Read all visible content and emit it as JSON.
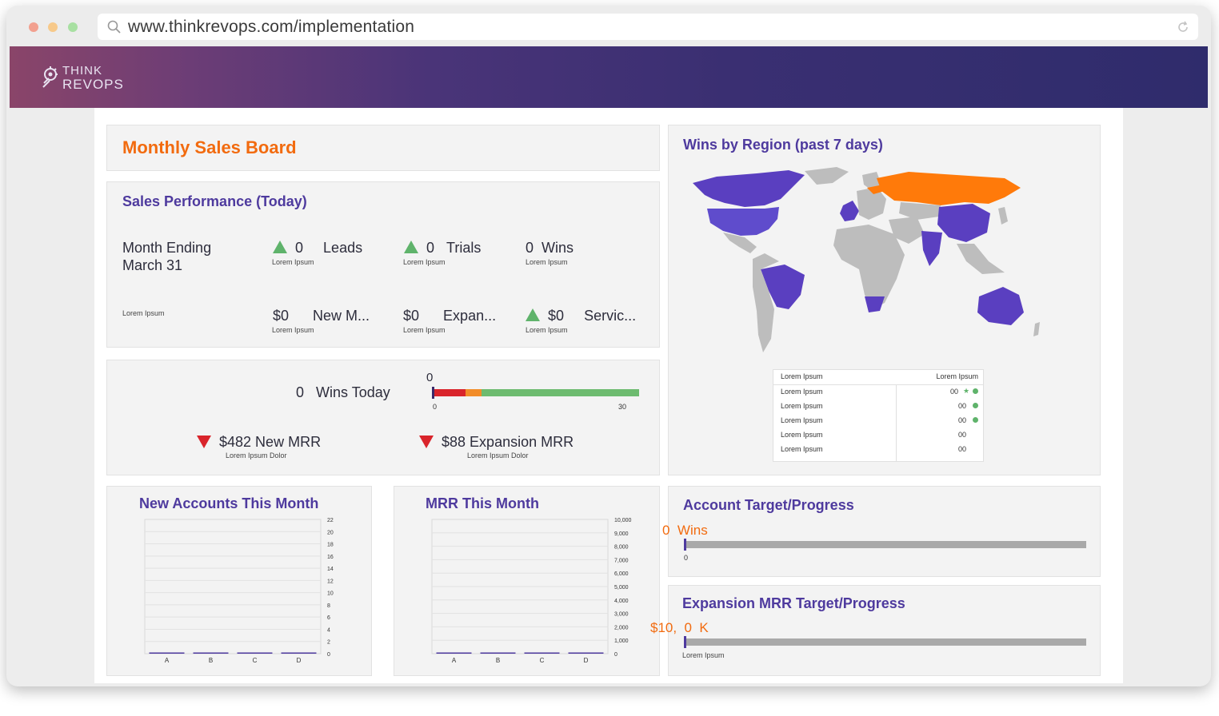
{
  "browser": {
    "url": "www.thinkrevops.com/implementation"
  },
  "logo": {
    "line1": "THINK",
    "line2": "REVOPS"
  },
  "board": {
    "title": "Monthly Sales Board"
  },
  "sales_performance": {
    "title": "Sales Performance (Today)",
    "month_ending": "Month Ending",
    "month_date": "March 31",
    "row1": [
      {
        "value": "0",
        "label": "Leads",
        "sub": "Lorem Ipsum",
        "trend": "up"
      },
      {
        "value": "0",
        "label": "Trials",
        "sub": "Lorem Ipsum",
        "trend": "up"
      },
      {
        "value": "0",
        "label": "Wins",
        "sub": "Lorem Ipsum",
        "trend": "none"
      }
    ],
    "row2_left": "Lorem Ipsum",
    "row2": [
      {
        "value": "$0",
        "label": "New M...",
        "sub": "Lorem Ipsum",
        "trend": "none"
      },
      {
        "value": "$0",
        "label": "Expan...",
        "sub": "Lorem Ipsum",
        "trend": "none"
      },
      {
        "value": "$0",
        "label": "Servic...",
        "sub": "Lorem Ipsum",
        "trend": "up"
      }
    ]
  },
  "wins_today": {
    "value": "0",
    "label": "Wins Today",
    "gauge_value": "0",
    "gauge_min": "0",
    "gauge_max": "30",
    "new_mrr": "$482 New MRR",
    "new_mrr_sub": "Lorem Ipsum Dolor",
    "exp_mrr": "$88 Expansion MRR",
    "exp_mrr_sub": "Lorem Ipsum Dolor",
    "colors": {
      "red": "#d9242b",
      "orange": "#f28c28",
      "green": "#6dbb6f"
    }
  },
  "wins_by_region": {
    "title": "Wins by Region (past 7 days)",
    "table": {
      "headers": [
        "Lorem Ipsum",
        "Lorem Ipsum"
      ],
      "rows": [
        {
          "name": "Lorem Ipsum",
          "value": "00",
          "star": true,
          "dot": true
        },
        {
          "name": "Lorem Ipsum",
          "value": "00",
          "star": false,
          "dot": true
        },
        {
          "name": "Lorem Ipsum",
          "value": "00",
          "star": false,
          "dot": true
        },
        {
          "name": "Lorem Ipsum",
          "value": "00",
          "star": false,
          "dot": false
        },
        {
          "name": "Lorem Ipsum",
          "value": "00",
          "star": false,
          "dot": false
        }
      ]
    },
    "colors": {
      "purple": "#5a3fc0",
      "orange": "#ff7a0a",
      "gray": "#bdbdbd"
    }
  },
  "new_accounts": {
    "title": "New Accounts This Month"
  },
  "mrr_month": {
    "title": "MRR This Month"
  },
  "account_target": {
    "title": "Account Target/Progress",
    "value": "0",
    "unit": "Wins",
    "min": "0"
  },
  "expansion_target": {
    "title": "Expansion MRR Target/Progress",
    "value": "$10,  0  K",
    "sub": "Lorem Ipsum"
  },
  "chart_data": [
    {
      "type": "bar",
      "title": "New Accounts This Month",
      "categories": [
        "A",
        "B",
        "C",
        "D"
      ],
      "values": [
        0,
        0,
        0,
        0
      ],
      "yticks": [
        "22",
        "20",
        "18",
        "16",
        "14",
        "12",
        "10",
        "8",
        "6",
        "4",
        "2",
        "0"
      ],
      "ylim": [
        0,
        22
      ]
    },
    {
      "type": "bar",
      "title": "MRR This Month",
      "categories": [
        "A",
        "B",
        "C",
        "D"
      ],
      "values": [
        0,
        0,
        0,
        0
      ],
      "yticks": [
        "10,000",
        "9,000",
        "8,000",
        "7,000",
        "6,000",
        "5,000",
        "4,000",
        "3,000",
        "2,000",
        "1,000",
        "0"
      ],
      "ylim": [
        0,
        10000
      ]
    }
  ]
}
